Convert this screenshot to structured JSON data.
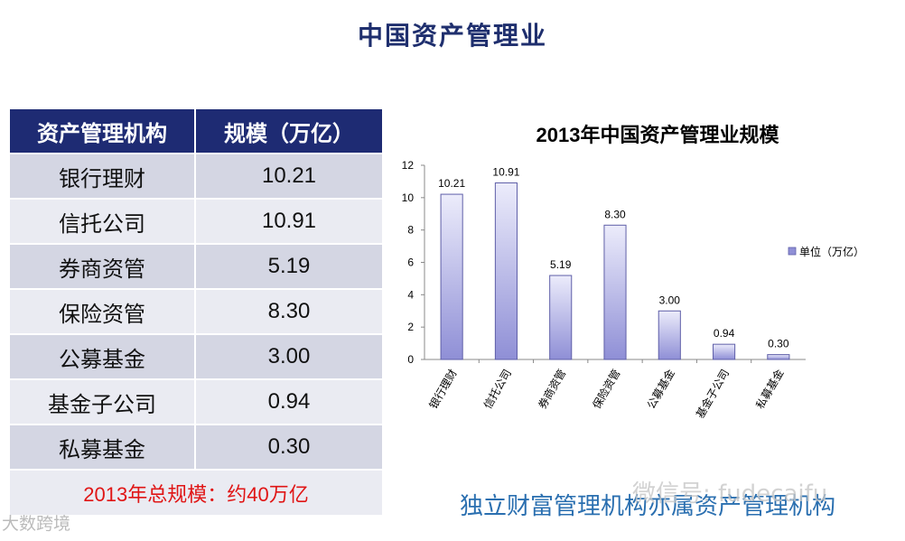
{
  "page": {
    "title": "中国资产管理业",
    "caption": "独立财富管理机构亦属资产管理机构",
    "watermark_left": "大数跨境",
    "watermark_right": "微信号: fudecaifu"
  },
  "table": {
    "headers": [
      "资产管理机构",
      "规模（万亿）"
    ],
    "rows": [
      {
        "name": "银行理财",
        "value": "10.21"
      },
      {
        "name": "信托公司",
        "value": "10.91"
      },
      {
        "name": "券商资管",
        "value": "5.19"
      },
      {
        "name": "保险资管",
        "value": "8.30"
      },
      {
        "name": "公募基金",
        "value": "3.00"
      },
      {
        "name": "基金子公司",
        "value": "0.94"
      },
      {
        "name": "私募基金",
        "value": "0.30"
      }
    ],
    "total_label": "2013年总规模：约40万亿"
  },
  "chart_data": {
    "type": "bar",
    "title": "2013年中国资产管理业规模",
    "categories": [
      "银行理财",
      "信托公司",
      "券商资管",
      "保险资管",
      "公募基金",
      "基金子公司",
      "私募基金"
    ],
    "series": [
      {
        "name": "单位（万亿）",
        "values": [
          10.21,
          10.91,
          5.19,
          8.3,
          3.0,
          0.94,
          0.3
        ]
      }
    ],
    "data_labels": [
      "10.21",
      "10.91",
      "5.19",
      "8.30",
      "3.00",
      "0.94",
      "0.30"
    ],
    "ylim": [
      0,
      12
    ],
    "yticks": [
      0,
      2,
      4,
      6,
      8,
      10,
      12
    ],
    "grid": false,
    "legend_position": "right",
    "bar_color_light": "#ececfb",
    "bar_color_dark": "#8f8fd6",
    "bar_border": "#5f5fa8"
  }
}
